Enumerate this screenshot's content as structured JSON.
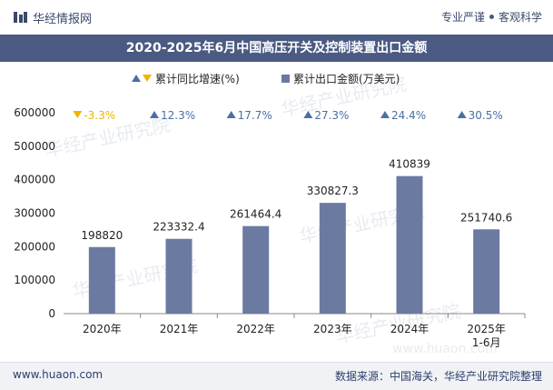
{
  "header": {
    "brand": "华经情报网",
    "tagline_a": "专业严谨",
    "tagline_b": "客观科学"
  },
  "watermark": "华经产业研究院",
  "watermark_url": "www.huaon.com",
  "footer": {
    "website": "www.huaon.com",
    "source": "数据来源：中国海关，华经产业研究院整理"
  },
  "colors": {
    "bar": "#6b7aa1",
    "up": "#4a6fa5",
    "down": "#f0b400",
    "title_bg": "#4a5a82"
  },
  "chart_data": {
    "type": "bar",
    "title": "2020-2025年6月中国高压开关及控制装置出口金额",
    "legend": [
      {
        "name": "累计同比增速(%)",
        "marker": "triangle"
      },
      {
        "name": "累计出口金额(万美元)",
        "marker": "square"
      }
    ],
    "legend_position": "top",
    "categories": [
      "2020年",
      "2021年",
      "2022年",
      "2023年",
      "2024年",
      "2025年1-6月"
    ],
    "category_lines": [
      [
        "2020年"
      ],
      [
        "2021年"
      ],
      [
        "2022年"
      ],
      [
        "2023年"
      ],
      [
        "2024年"
      ],
      [
        "2025年",
        "1-6月"
      ]
    ],
    "series": [
      {
        "name": "累计出口金额(万美元)",
        "values": [
          198820,
          223332.4,
          261464.4,
          330827.3,
          410839,
          251740.6
        ],
        "labels": [
          "198820",
          "223332.4",
          "261464.4",
          "330827.3",
          "410839",
          "251740.6"
        ]
      },
      {
        "name": "累计同比增速(%)",
        "values": [
          -3.3,
          12.3,
          17.7,
          27.3,
          24.4,
          30.5
        ],
        "labels": [
          "-3.3%",
          "12.3%",
          "17.7%",
          "27.3%",
          "24.4%",
          "30.5%"
        ]
      }
    ],
    "ylim": [
      0,
      600000
    ],
    "yticks": [
      0,
      100000,
      200000,
      300000,
      400000,
      500000,
      600000
    ],
    "grid": false
  }
}
